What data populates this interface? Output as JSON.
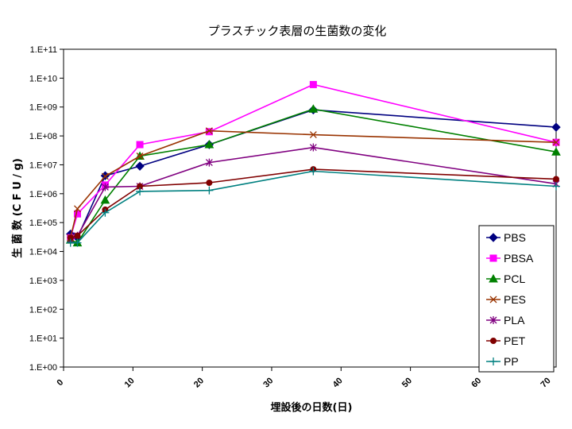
{
  "chart_data": {
    "type": "line",
    "title": "プラスチック表層の生菌数の変化",
    "xlabel": "埋設後の日数(日)",
    "ylabel": "生 菌 数 (C F U / g)",
    "x_scale": "linear",
    "y_scale": "log",
    "xlim": [
      0,
      71
    ],
    "ylim": [
      1,
      100000000000
    ],
    "x_ticks": [
      0,
      10,
      20,
      30,
      40,
      50,
      60,
      70
    ],
    "y_tick_labels": [
      "1.E+00",
      "1.E+01",
      "1.E+02",
      "1.E+03",
      "1.E+04",
      "1.E+05",
      "1.E+06",
      "1.E+07",
      "1.E+08",
      "1.E+09",
      "1.E+10",
      "1.E+11"
    ],
    "grid": false,
    "legend_position": "bottom-right",
    "x": [
      1,
      2,
      6,
      11,
      21,
      36,
      71
    ],
    "series": [
      {
        "name": "PBS",
        "color": "#000080",
        "marker": "diamond",
        "values": [
          40000,
          30000,
          4200000,
          9000000,
          50000000,
          800000000,
          200000000
        ]
      },
      {
        "name": "PBSA",
        "color": "#ff00ff",
        "marker": "square",
        "values": [
          30000,
          200000,
          2000000,
          50000000,
          140000000,
          6000000000,
          60000000
        ]
      },
      {
        "name": "PCL",
        "color": "#008000",
        "marker": "triangle",
        "values": [
          25000,
          20000,
          600000,
          20000000,
          50000000,
          850000000,
          28000000
        ]
      },
      {
        "name": "PES",
        "color": "#993300",
        "marker": "x",
        "values": [
          30000,
          300000,
          4000000,
          20000000,
          150000000,
          110000000,
          60000000
        ]
      },
      {
        "name": "PLA",
        "color": "#800080",
        "marker": "asterisk",
        "values": [
          25000,
          35000,
          1700000,
          1800000,
          12000000,
          40000000,
          2200000
        ]
      },
      {
        "name": "PET",
        "color": "#800000",
        "marker": "circle",
        "values": [
          30000,
          35000,
          280000,
          1800000,
          2400000,
          7000000,
          3200000
        ]
      },
      {
        "name": "PP",
        "color": "#008080",
        "marker": "plus",
        "values": [
          20000,
          20000,
          220000,
          1200000,
          1300000,
          6000000,
          1800000
        ]
      }
    ]
  }
}
